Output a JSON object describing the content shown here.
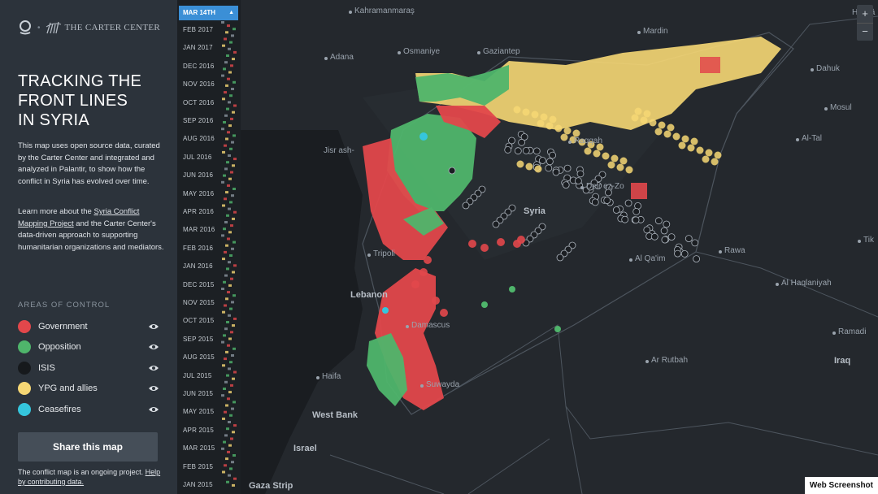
{
  "brand": {
    "logo_icon": "globe-marker-icon",
    "separator": "•",
    "carter_mark_icon": "carter-center-seal-icon",
    "carter_name": "THE CARTER CENTER"
  },
  "title": {
    "line1": "TRACKING THE",
    "line2": "FRONT LINES",
    "line3": "IN SYRIA"
  },
  "description": {
    "p1": "This map uses open source data, curated by the Carter Center and integrated and analyzed in Palantir, to show how the conflict in Syria has evolved over time.",
    "p2_before": "Learn more about the ",
    "p2_link": "Syria Conflict Mapping Project",
    "p2_after": " and the Carter Center's data-driven approach to supporting humanitarian organizations and mediators."
  },
  "areas": {
    "title": "AREAS OF CONTROL",
    "items": [
      {
        "label": "Government",
        "color": "#e2474b"
      },
      {
        "label": "Opposition",
        "color": "#4fb56b"
      },
      {
        "label": "ISIS",
        "color": "#16191c"
      },
      {
        "label": "YPG and allies",
        "color": "#f6d774"
      },
      {
        "label": "Ceasefires",
        "color": "#35c6dd"
      }
    ],
    "visibility_icon": "eye-icon"
  },
  "share_label": "Share this map",
  "note": {
    "text": "The conflict map is an ongoing project.",
    "link": "Help by contributing data."
  },
  "timeline": {
    "current": "MAR 14TH",
    "labels": [
      "FEB 2017",
      "JAN 2017",
      "DEC 2016",
      "NOV 2016",
      "OCT 2016",
      "SEP 2016",
      "AUG 2016",
      "JUL 2016",
      "JUN 2016",
      "MAY 2016",
      "APR 2016",
      "MAR 2016",
      "FEB 2016",
      "JAN 2016",
      "DEC 2015",
      "NOV 2015",
      "OCT 2015",
      "SEP 2015",
      "AUG 2015",
      "JUL 2015",
      "JUN 2015",
      "MAY 2015",
      "APR 2015",
      "MAR 2015",
      "FEB 2015",
      "JAN 2015"
    ]
  },
  "map": {
    "places": [
      "Kahramanmaraş",
      "Hakkâ",
      "Mardin",
      "Adana",
      "Osmaniye",
      "Gaziantep",
      "Dahuk",
      "Mosul",
      "Jisr ash-",
      "Al-Tal",
      "Raqqah",
      "Deir ez-Zo",
      "Syria",
      "Tripoli",
      "Rawa",
      "Al Qa'im",
      "Tik",
      "Lebanon",
      "Al Haqlaniyah",
      "Damascus",
      "Ramadi",
      "Ar Rutbah",
      "Iraq",
      "Haifa",
      "Suwayda",
      "West Bank",
      "Israel",
      "Gaza Strip"
    ],
    "zoom_in": "+",
    "zoom_out": "−"
  },
  "credit": "Web Screenshot"
}
